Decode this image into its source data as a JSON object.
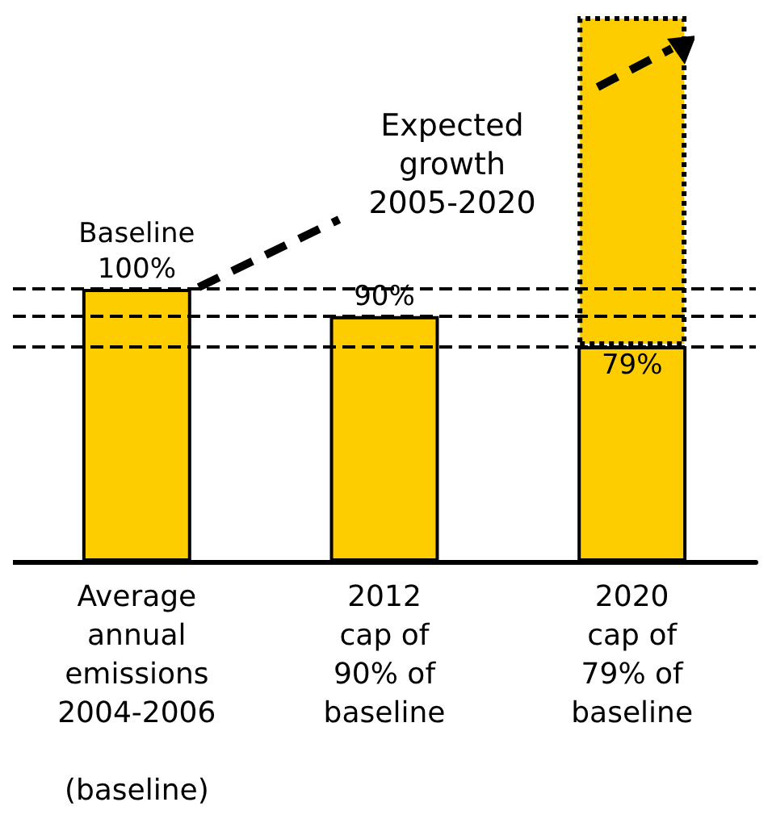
{
  "chart_data": {
    "type": "bar",
    "categories": [
      "Average\nannual\nemissions\n2004-2006\n\n(baseline)",
      "2012\ncap of\n90% of\nbaseline",
      "2020\ncap of\n79% of\nbaseline"
    ],
    "series": [
      {
        "color": "#fdcd00",
        "values": [
          100,
          90,
          79
        ],
        "value_labels": [
          "Baseline\n100%",
          "90%",
          "79%"
        ]
      },
      {
        "color": "#fdcd00",
        "values": [
          null,
          null,
          121
        ],
        "line_style": "dotted"
      }
    ],
    "ylim": [
      0,
      200
    ],
    "ref_lines": [
      {
        "axis": "y",
        "value": 100,
        "color": "#000000",
        "line_style": "dashed"
      },
      {
        "axis": "y",
        "value": 90,
        "color": "#000000",
        "line_style": "dashed"
      },
      {
        "axis": "y",
        "value": 79,
        "color": "#000000",
        "line_style": "dashed"
      }
    ],
    "annotations": [
      "Expected\ngrowth\n2005-2020"
    ],
    "stacked": true,
    "grid": false
  }
}
